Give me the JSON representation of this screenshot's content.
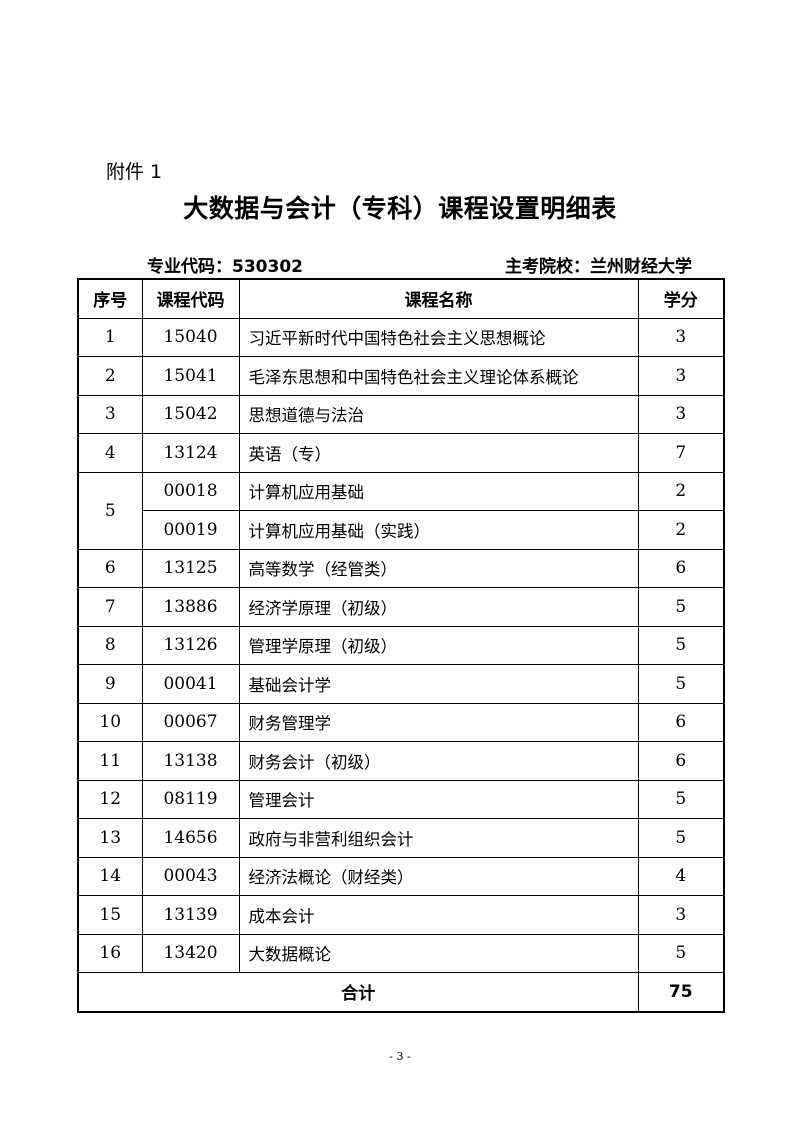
{
  "attachment": "附件 1",
  "title": "大数据与会计（专科）课程设置明细表",
  "major_code": "专业代码：530302",
  "school": "主考院校：兰州财经大学",
  "headers": [
    "序号",
    "课程代码",
    "课程名称",
    "学分"
  ],
  "rows": [
    {
      "no": "1",
      "code": "15040",
      "name": "习近平新时代中国特色社会主义思想概论",
      "credit": "3"
    },
    {
      "no": "2",
      "code": "15041",
      "name": "毛泽东思想和中国特色社会主义理论体系概论",
      "credit": "3"
    },
    {
      "no": "3",
      "code": "15042",
      "name": "思想道德与法治",
      "credit": "3"
    },
    {
      "no": "4",
      "code": "13124",
      "name": "英语（专）",
      "credit": "7"
    },
    {
      "no": "5",
      "code": "00018",
      "name": "计算机应用基础",
      "credit": "2"
    },
    {
      "no": "",
      "code": "00019",
      "name": "计算机应用基础（实践）",
      "credit": "2"
    },
    {
      "no": "6",
      "code": "13125",
      "name": "高等数学（经管类）",
      "credit": "6"
    },
    {
      "no": "7",
      "code": "13886",
      "name": "经济学原理（初级）",
      "credit": "5"
    },
    {
      "no": "8",
      "code": "13126",
      "name": "管理学原理（初级）",
      "credit": "5"
    },
    {
      "no": "9",
      "code": "00041",
      "name": "基础会计学",
      "credit": "5"
    },
    {
      "no": "10",
      "code": "00067",
      "name": "财务管理学",
      "credit": "6"
    },
    {
      "no": "11",
      "code": "13138",
      "name": "财务会计（初级）",
      "credit": "6"
    },
    {
      "no": "12",
      "code": "08119",
      "name": "管理会计",
      "credit": "5"
    },
    {
      "no": "13",
      "code": "14656",
      "name": "政府与非营利组织会计",
      "credit": "5"
    },
    {
      "no": "14",
      "code": "00043",
      "name": "经济法概论（财经类）",
      "credit": "4"
    },
    {
      "no": "15",
      "code": "13139",
      "name": "成本会计",
      "credit": "3"
    },
    {
      "no": "16",
      "code": "13420",
      "name": "大数据概论",
      "credit": "5"
    }
  ],
  "total": {
    "label": "合计",
    "credit": "75"
  },
  "page_number": "- 3 -"
}
